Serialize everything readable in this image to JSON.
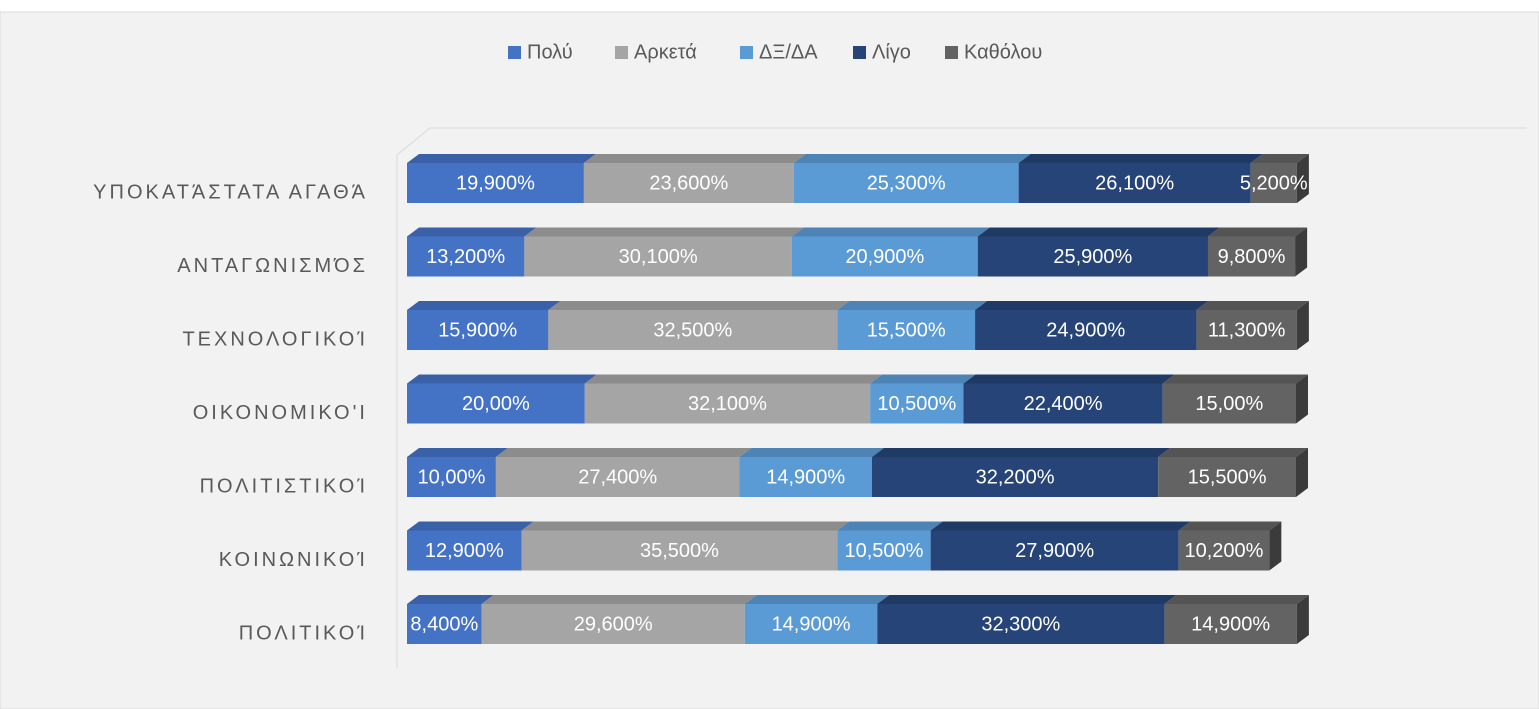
{
  "chart_data": {
    "type": "stacked-bar-horizontal-3d",
    "categories": [
      "ΥΠΟΚΑΤΆΣΤΑΤΑ ΑΓΑΘΆ",
      "ΑΝΤΑΓΩΝΙΣΜΌΣ",
      "ΤΕΧΝΟΛΟΓΙΚΟΊ",
      "ΟΙΚΟΝΟΜΙΚΟ'Ι",
      "ΠΟΛΙΤΙΣΤΙΚΟΊ",
      "ΚΟΙΝΩΝΙΚΟΊ",
      "ΠΟΛΙΤΙΚΟΊ"
    ],
    "series": [
      {
        "name": "Πολύ",
        "color": "#4472c4",
        "values": [
          19.9,
          13.2,
          15.9,
          20.0,
          10.0,
          12.9,
          8.4
        ],
        "value_labels": [
          "19,900%",
          "13,200%",
          "15,900%",
          "20,00%",
          "10,00%",
          "12,900%",
          "8,400%"
        ]
      },
      {
        "name": "Αρκετά",
        "color": "#a5a5a5",
        "values": [
          23.6,
          30.1,
          32.5,
          32.1,
          27.4,
          35.5,
          29.6
        ],
        "value_labels": [
          "23,600%",
          "30,100%",
          "32,500%",
          "32,100%",
          "27,400%",
          "35,500%",
          "29,600%"
        ]
      },
      {
        "name": "ΔΞ/ΔΑ",
        "color": "#5b9bd5",
        "values": [
          25.3,
          20.9,
          15.5,
          10.5,
          14.9,
          10.5,
          14.9
        ],
        "value_labels": [
          "25,300%",
          "20,900%",
          "15,500%",
          "10,500%",
          "14,900%",
          "10,500%",
          "14,900%"
        ]
      },
      {
        "name": "Λίγο",
        "color": "#264478",
        "values": [
          26.1,
          25.9,
          24.9,
          22.4,
          32.2,
          27.9,
          32.3
        ],
        "value_labels": [
          "26,100%",
          "25,900%",
          "24,900%",
          "22,400%",
          "32,200%",
          "27,900%",
          "32,300%"
        ]
      },
      {
        "name": "Καθόλου",
        "color": "#636363",
        "values": [
          5.2,
          9.8,
          11.3,
          15.0,
          15.5,
          10.2,
          14.9
        ],
        "value_labels": [
          "5,200%",
          "9,800%",
          "11,300%",
          "15,00%",
          "15,500%",
          "10,200%",
          "14,900%"
        ]
      }
    ],
    "legend": "top"
  }
}
